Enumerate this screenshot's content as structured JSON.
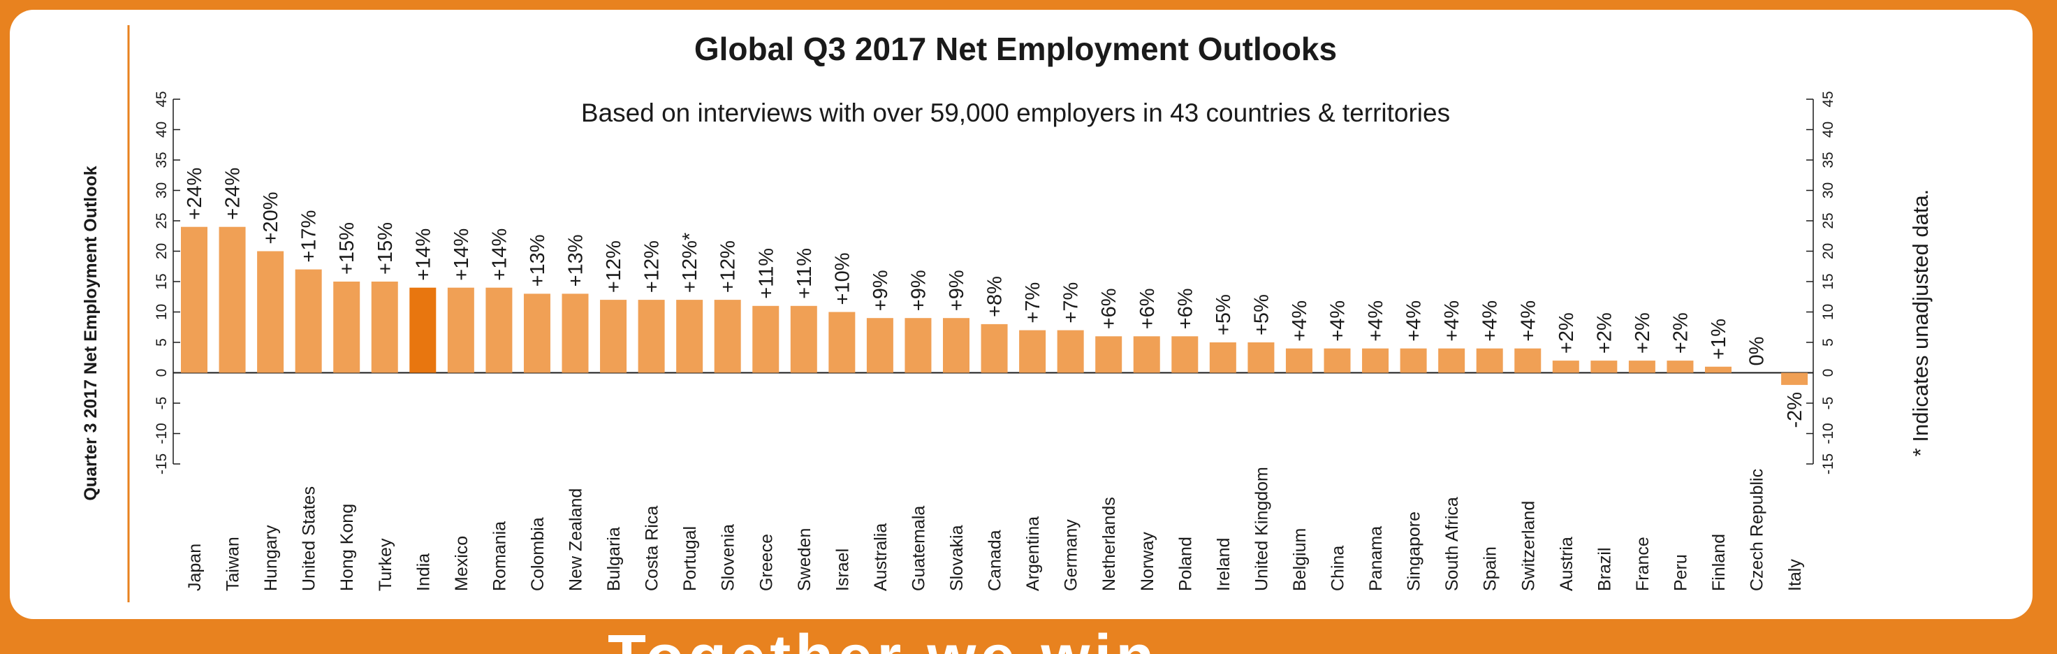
{
  "chart_data": {
    "type": "bar",
    "title": "Global Q3 2017 Net Employment Outlooks",
    "subtitle": "Based on interviews with over 59,000 employers in 43 countries & territories",
    "ylabel": "Quarter 3 2017 Net Employment Outlook",
    "note": "* Indicates unadjusted data.",
    "ylim": [
      -15,
      45
    ],
    "yticks": [
      "-15",
      "-10",
      "-5",
      "0",
      "5",
      "10",
      "15",
      "20",
      "25",
      "30",
      "35",
      "40",
      "45"
    ],
    "highlight_category": "India",
    "colors": {
      "bar": "#F0A055",
      "highlight": "#E8760F",
      "frame": "#E8821F"
    },
    "categories": [
      "Japan",
      "Taiwan",
      "Hungary",
      "United States",
      "Hong Kong",
      "Turkey",
      "India",
      "Mexico",
      "Romania",
      "Colombia",
      "New Zealand",
      "Bulgaria",
      "Costa Rica",
      "Portugal",
      "Slovenia",
      "Greece",
      "Sweden",
      "Israel",
      "Australia",
      "Guatemala",
      "Slovakia",
      "Canada",
      "Argentina",
      "Germany",
      "Netherlands",
      "Norway",
      "Poland",
      "Ireland",
      "United Kingdom",
      "Belgium",
      "China",
      "Panama",
      "Singapore",
      "South Africa",
      "Spain",
      "Switzerland",
      "Austria",
      "Brazil",
      "France",
      "Peru",
      "Finland",
      "Czech Republic",
      "Italy"
    ],
    "values": [
      24,
      24,
      20,
      17,
      15,
      15,
      14,
      14,
      14,
      13,
      13,
      12,
      12,
      12,
      12,
      11,
      11,
      10,
      9,
      9,
      9,
      8,
      7,
      7,
      6,
      6,
      6,
      5,
      5,
      4,
      4,
      4,
      4,
      4,
      4,
      4,
      2,
      2,
      2,
      2,
      1,
      0,
      -2
    ],
    "value_labels": [
      "+24%",
      "+24%",
      "+20%",
      "+17%",
      "+15%",
      "+15%",
      "+14%",
      "+14%",
      "+14%",
      "+13%",
      "+13%",
      "+12%",
      "+12%",
      "+12%*",
      "+12%",
      "+11%",
      "+11%",
      "+10%",
      "+9%",
      "+9%",
      "+9%",
      "+8%",
      "+7%",
      "+7%",
      "+6%",
      "+6%",
      "+6%",
      "+5%",
      "+5%",
      "+4%",
      "+4%",
      "+4%",
      "+4%",
      "+4%",
      "+4%",
      "+4%",
      "+2%",
      "+2%",
      "+2%",
      "+2%",
      "+1%",
      "0%",
      "-2%"
    ]
  },
  "footer_fragment": "Together we win"
}
